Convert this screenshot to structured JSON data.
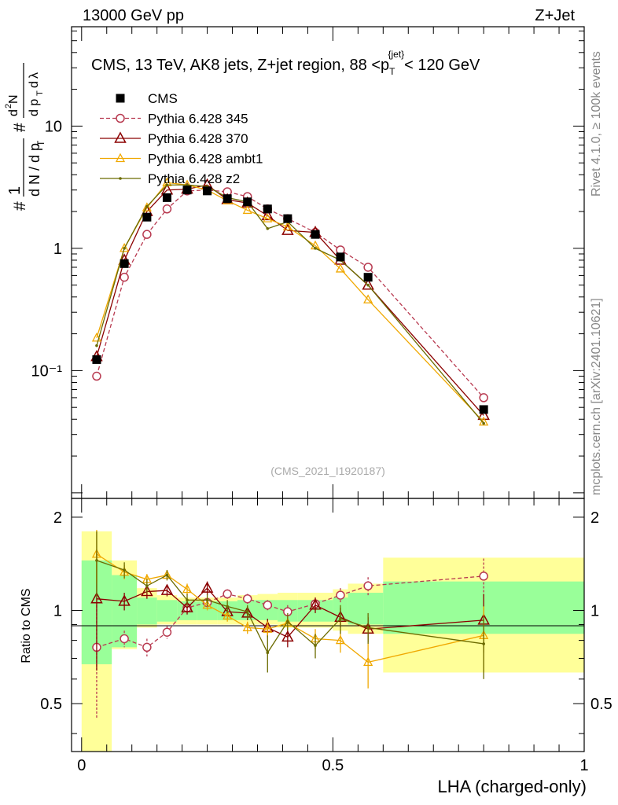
{
  "header": {
    "left": "13000 GeV pp",
    "right": "Z+Jet"
  },
  "side_labels": {
    "rivet": "Rivet 4.1.0, ≥ 100k events",
    "mcplots": "mcplots.cern.ch [arXiv:2401.10621]"
  },
  "watermark": "(CMS_2021_I1920187)",
  "colors": {
    "data": "#000000",
    "p345": "#b83a50",
    "p370": "#8b0000",
    "ambt1": "#f0a800",
    "z2": "#6b6b00",
    "band_inner": "#99ff99",
    "band_outer": "#ffff99"
  },
  "chart_data": [
    {
      "type": "line",
      "title": "CMS, 13 TeV, AK8 jets, Z+jet region, 88 <p_T^{jet}< 120 GeV",
      "ylabel": "1/(dN/dp_T) # d²N/(dp_T dλ)",
      "yscale": "log",
      "xlim": [
        -0.02,
        1.0
      ],
      "ylim": [
        0.009,
        65
      ],
      "yticks": [
        {
          "v": 0.1,
          "label": "10⁻¹"
        },
        {
          "v": 1,
          "label": "1"
        },
        {
          "v": 10,
          "label": "10"
        }
      ],
      "legend": [
        {
          "key": "data",
          "label": "CMS"
        },
        {
          "key": "p345",
          "label": "Pythia 6.428 345"
        },
        {
          "key": "p370",
          "label": "Pythia 6.428 370"
        },
        {
          "key": "ambt1",
          "label": "Pythia 6.428 ambt1"
        },
        {
          "key": "z2",
          "label": "Pythia 6.428 z2"
        }
      ],
      "x": [
        0.03,
        0.085,
        0.13,
        0.17,
        0.21,
        0.25,
        0.29,
        0.33,
        0.37,
        0.41,
        0.465,
        0.515,
        0.57,
        0.8
      ],
      "x_edges": [
        0.0,
        0.06,
        0.11,
        0.15,
        0.19,
        0.23,
        0.27,
        0.31,
        0.35,
        0.39,
        0.43,
        0.5,
        0.53,
        0.6,
        1.0
      ],
      "series": [
        {
          "name": "CMS",
          "key": "data",
          "values": [
            0.123,
            0.75,
            1.8,
            2.6,
            3.0,
            2.95,
            2.55,
            2.4,
            2.1,
            1.75,
            1.3,
            0.85,
            0.58,
            0.048
          ]
        },
        {
          "name": "Pythia 6.428 345",
          "key": "p345",
          "values": [
            0.09,
            0.58,
            1.3,
            2.1,
            2.95,
            3.0,
            2.9,
            2.65,
            2.1,
            1.75,
            1.35,
            0.97,
            0.7,
            0.06
          ]
        },
        {
          "name": "Pythia 6.428 370",
          "key": "p370",
          "values": [
            0.13,
            0.8,
            2.0,
            3.0,
            3.05,
            3.3,
            2.5,
            2.35,
            1.85,
            1.4,
            1.35,
            0.8,
            0.5,
            0.043
          ]
        },
        {
          "name": "Pythia 6.428 ambt1",
          "key": "ambt1",
          "values": [
            0.185,
            1.0,
            2.15,
            3.45,
            3.3,
            3.0,
            2.45,
            2.05,
            1.75,
            1.5,
            1.05,
            0.68,
            0.38,
            0.038
          ]
        },
        {
          "name": "Pythia 6.428 z2",
          "key": "z2",
          "values": [
            0.16,
            1.0,
            2.2,
            3.3,
            3.3,
            3.2,
            2.6,
            2.4,
            1.45,
            1.65,
            1.0,
            0.8,
            0.5,
            0.037
          ]
        }
      ]
    },
    {
      "type": "line",
      "ylabel": "Ratio to CMS",
      "xlabel": "LHA (charged-only)",
      "yscale": "log",
      "xlim": [
        -0.02,
        1.0
      ],
      "ylim": [
        0.35,
        2.3
      ],
      "xticks": [
        {
          "v": 0,
          "label": "0"
        },
        {
          "v": 0.5,
          "label": "0.5"
        },
        {
          "v": 1,
          "label": "1"
        }
      ],
      "yticks": [
        {
          "v": 0.5,
          "label": "0.5"
        },
        {
          "v": 1,
          "label": "1"
        },
        {
          "v": 2,
          "label": "2"
        }
      ],
      "band_inner": [
        [
          0.67,
          1.45
        ],
        [
          0.76,
          1.3
        ],
        [
          0.9,
          1.1
        ],
        [
          0.92,
          1.08
        ],
        [
          0.93,
          1.07
        ],
        [
          0.93,
          1.07
        ],
        [
          0.93,
          1.07
        ],
        [
          0.93,
          1.08
        ],
        [
          0.93,
          1.08
        ],
        [
          0.92,
          1.08
        ],
        [
          0.92,
          1.08
        ],
        [
          0.92,
          1.1
        ],
        [
          0.9,
          1.14
        ],
        [
          0.84,
          1.24
        ]
      ],
      "band_outer": [
        [
          0.35,
          1.8
        ],
        [
          0.75,
          1.45
        ],
        [
          0.88,
          1.18
        ],
        [
          0.9,
          1.12
        ],
        [
          0.9,
          1.1
        ],
        [
          0.9,
          1.1
        ],
        [
          0.9,
          1.1
        ],
        [
          0.9,
          1.12
        ],
        [
          0.9,
          1.13
        ],
        [
          0.88,
          1.14
        ],
        [
          0.88,
          1.14
        ],
        [
          0.86,
          1.17
        ],
        [
          0.84,
          1.22
        ],
        [
          0.63,
          1.48
        ]
      ],
      "series": [
        {
          "name": "Pythia 6.428 345",
          "key": "p345",
          "values": [
            0.76,
            0.81,
            0.76,
            0.85,
            1.02,
            1.06,
            1.13,
            1.09,
            1.04,
            0.99,
            1.05,
            1.12,
            1.2,
            1.29
          ],
          "err": [
            0.31,
            0.05,
            0.05,
            0.04,
            0.04,
            0.04,
            0.04,
            0.04,
            0.04,
            0.05,
            0.05,
            0.06,
            0.08,
            0.18
          ]
        },
        {
          "name": "Pythia 6.428 370",
          "key": "p370",
          "values": [
            1.09,
            1.07,
            1.15,
            1.16,
            1.02,
            1.18,
            0.99,
            0.98,
            0.88,
            0.82,
            1.04,
            0.95,
            0.87,
            0.93
          ],
          "err": [
            0.45,
            0.07,
            0.06,
            0.05,
            0.05,
            0.06,
            0.05,
            0.05,
            0.06,
            0.06,
            0.06,
            0.07,
            0.08,
            0.2
          ]
        },
        {
          "name": "Pythia 6.428 ambt1",
          "key": "ambt1",
          "values": [
            1.52,
            1.33,
            1.26,
            1.3,
            1.17,
            1.04,
            0.96,
            0.88,
            0.87,
            0.91,
            0.81,
            0.8,
            0.68,
            0.83
          ],
          "err": [
            0.3,
            0.07,
            0.05,
            0.05,
            0.05,
            0.04,
            0.04,
            0.04,
            0.05,
            0.05,
            0.06,
            0.07,
            0.12,
            0.2
          ]
        },
        {
          "name": "Pythia 6.428 z2",
          "key": "z2",
          "values": [
            1.45,
            1.35,
            1.2,
            1.3,
            1.08,
            1.08,
            1.03,
            0.99,
            0.73,
            0.92,
            0.77,
            0.94,
            0.88,
            0.78
          ],
          "err": [
            0.35,
            0.08,
            0.06,
            0.05,
            0.05,
            0.05,
            0.05,
            0.05,
            0.1,
            0.06,
            0.07,
            0.1,
            0.1,
            0.18
          ]
        }
      ]
    }
  ]
}
